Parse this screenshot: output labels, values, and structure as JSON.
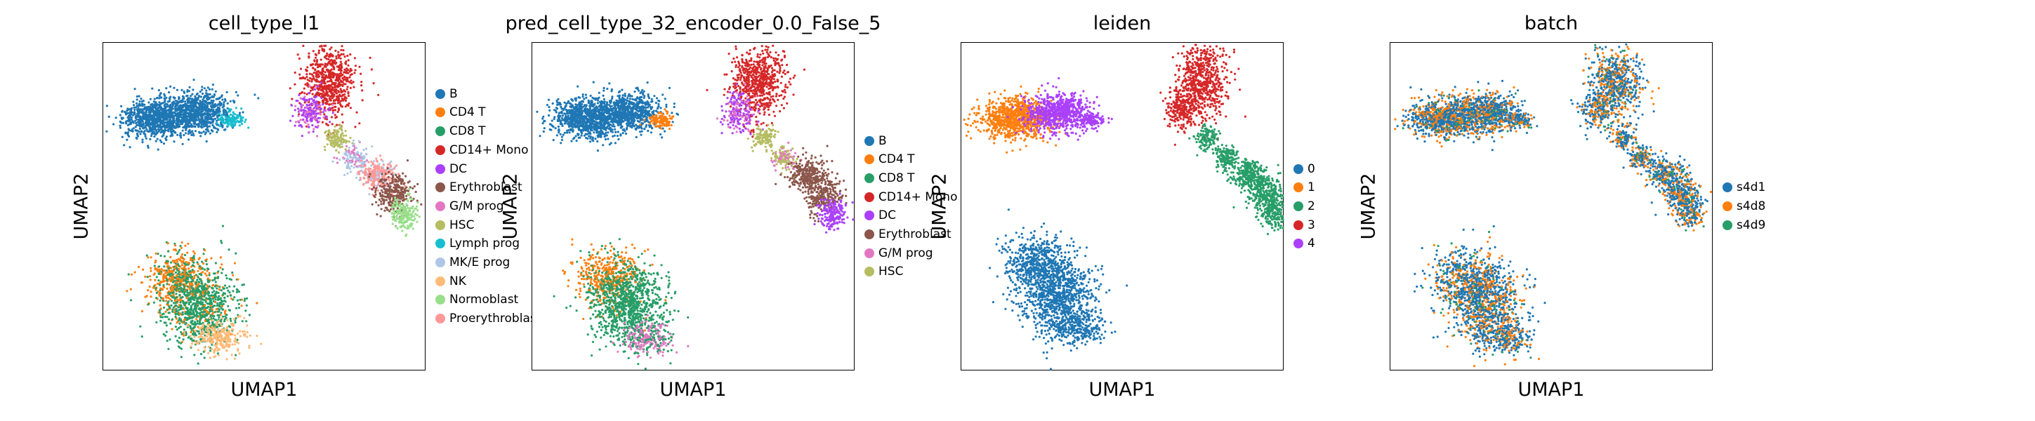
{
  "chart_data": [
    {
      "type": "scatter",
      "title": "cell_type_l1",
      "xlabel": "UMAP1",
      "ylabel": "UMAP2",
      "legend": "right",
      "legend_entries": [
        {
          "label": "B",
          "color": "#1f77b4"
        },
        {
          "label": "CD4 T",
          "color": "#ff7f0e"
        },
        {
          "label": "CD8 T",
          "color": "#279e68"
        },
        {
          "label": "CD14+ Mono",
          "color": "#d62728"
        },
        {
          "label": "DC",
          "color": "#aa40fc"
        },
        {
          "label": "Erythroblast",
          "color": "#8c564b"
        },
        {
          "label": "G/M prog",
          "color": "#e377c2"
        },
        {
          "label": "HSC",
          "color": "#b5bd61"
        },
        {
          "label": "Lymph prog",
          "color": "#17becf"
        },
        {
          "label": "MK/E prog",
          "color": "#aec7e8"
        },
        {
          "label": "NK",
          "color": "#ffbb78"
        },
        {
          "label": "Normoblast",
          "color": "#98df8a"
        },
        {
          "label": "Proerythroblast",
          "color": "#ff9896"
        }
      ]
    },
    {
      "type": "scatter",
      "title": "pred_cell_type_32_encoder_0.0_False_5",
      "xlabel": "UMAP1",
      "ylabel": "UMAP2",
      "legend": "right",
      "legend_entries": [
        {
          "label": "B",
          "color": "#1f77b4"
        },
        {
          "label": "CD4 T",
          "color": "#ff7f0e"
        },
        {
          "label": "CD8 T",
          "color": "#279e68"
        },
        {
          "label": "CD14+ Mono",
          "color": "#d62728"
        },
        {
          "label": "DC",
          "color": "#aa40fc"
        },
        {
          "label": "Erythroblast",
          "color": "#8c564b"
        },
        {
          "label": "G/M prog",
          "color": "#e377c2"
        },
        {
          "label": "HSC",
          "color": "#b5bd61"
        }
      ]
    },
    {
      "type": "scatter",
      "title": "leiden",
      "xlabel": "UMAP1",
      "ylabel": "UMAP2",
      "legend": "right",
      "legend_entries": [
        {
          "label": "0",
          "color": "#1f77b4"
        },
        {
          "label": "1",
          "color": "#ff7f0e"
        },
        {
          "label": "2",
          "color": "#279e68"
        },
        {
          "label": "3",
          "color": "#d62728"
        },
        {
          "label": "4",
          "color": "#aa40fc"
        }
      ]
    },
    {
      "type": "scatter",
      "title": "batch",
      "xlabel": "UMAP1",
      "ylabel": "UMAP2",
      "legend": "right",
      "legend_entries": [
        {
          "label": "s4d1",
          "color": "#1f77b4"
        },
        {
          "label": "s4d8",
          "color": "#ff7f0e"
        },
        {
          "label": "s4d9",
          "color": "#279e68"
        }
      ]
    }
  ]
}
